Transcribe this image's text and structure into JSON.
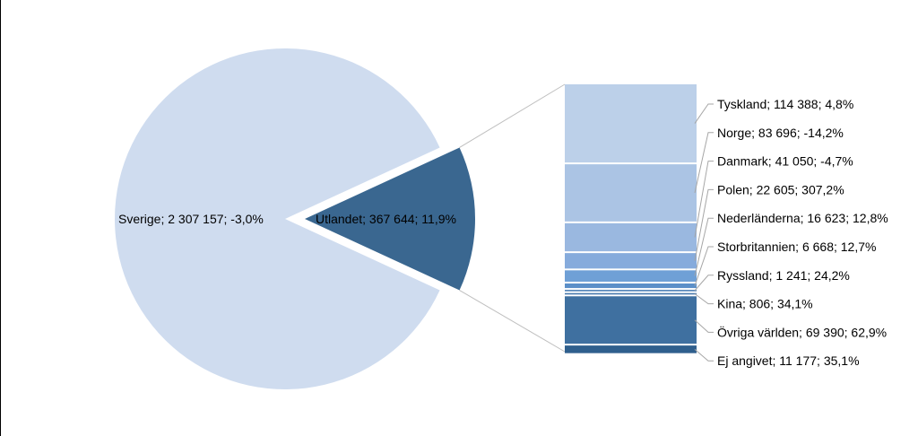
{
  "chart_data": {
    "type": "bar-of-pie",
    "pie": {
      "slices": [
        {
          "label": "Sverige",
          "value_text": "2 307 157",
          "change": "-3,0%",
          "value": 2307157,
          "color": "#cfdcef",
          "data_label": "Sverige; 2 307 157; -3,0%"
        },
        {
          "label": "Utlandet",
          "value_text": "367 644",
          "change": "11,9%",
          "value": 367644,
          "color": "#3a6790",
          "data_label": "Utlandet; 367 644; 11,9%"
        }
      ]
    },
    "bar": {
      "breakdown_of": "Utlandet",
      "segments": [
        {
          "label": "Tyskland",
          "value": 114388,
          "data_label": "Tyskland; 114 388; 4,8%",
          "color": "#bcd0e9"
        },
        {
          "label": "Norge",
          "value": 83696,
          "data_label": "Norge; 83 696; -14,2%",
          "color": "#abc4e4"
        },
        {
          "label": "Danmark",
          "value": 41050,
          "data_label": "Danmark; 41 050; -4,7%",
          "color": "#9ab8e0"
        },
        {
          "label": "Polen",
          "value": 22605,
          "data_label": "Polen; 22 605; 307,2%",
          "color": "#86abdc"
        },
        {
          "label": "Nederländerna",
          "value": 16623,
          "data_label": "Nederländerna; 16 623; 12,8%",
          "color": "#6fa0d6"
        },
        {
          "label": "Storbritannien",
          "value": 6668,
          "data_label": "Storbritannien; 6 668; 12,7%",
          "color": "#5b8fc8"
        },
        {
          "label": "Ryssland",
          "value": 1241,
          "data_label": "Ryssland; 1 241; 24,2%",
          "color": "#4d7fb5"
        },
        {
          "label": "Kina",
          "value": 806,
          "data_label": "Kina; 806; 34,1%",
          "color": "#4677ab"
        },
        {
          "label": "Övriga världen",
          "value": 69390,
          "data_label": "Övriga världen; 69 390; 62,9%",
          "color": "#3f70a0"
        },
        {
          "label": "Ej angivet",
          "value": 11177,
          "data_label": "Ej angivet; 11 177; 35,1%",
          "color": "#2f5f8d"
        }
      ]
    }
  }
}
